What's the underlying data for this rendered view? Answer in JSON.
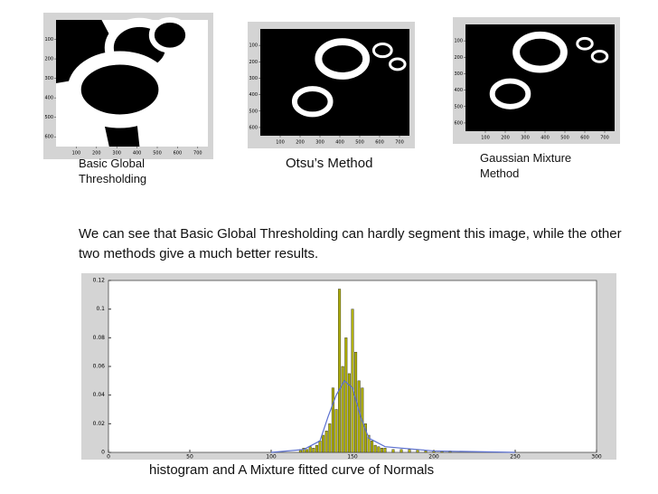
{
  "panels": [
    {
      "caption": "Basic Global Thresholding",
      "xlim": [
        0,
        750
      ],
      "ylim": [
        0,
        650
      ],
      "xticks": [
        100,
        200,
        300,
        400,
        500,
        600,
        700
      ],
      "yticks": [
        100,
        200,
        300,
        400,
        500,
        600
      ]
    },
    {
      "caption": "Otsu’s Method",
      "xlim": [
        0,
        750
      ],
      "ylim": [
        0,
        650
      ],
      "xticks": [
        100,
        200,
        300,
        400,
        500,
        600,
        700
      ],
      "yticks": [
        100,
        200,
        300,
        400,
        500,
        600
      ]
    },
    {
      "caption": "Gaussian Mixture Method",
      "xlim": [
        0,
        750
      ],
      "ylim": [
        0,
        650
      ],
      "xticks": [
        100,
        200,
        300,
        400,
        500,
        600,
        700
      ],
      "yticks": [
        100,
        200,
        300,
        400,
        500,
        600
      ]
    }
  ],
  "body": "We can see that Basic Global Thresholding can hardly segment this image, while the other two methods give a much better results.",
  "histogram": {
    "type": "bar",
    "caption": "histogram and A Mixture fitted curve of  Normals",
    "xlim": [
      0,
      300
    ],
    "ylim": [
      0,
      0.12
    ],
    "xticks": [
      0,
      50,
      100,
      150,
      200,
      250,
      300
    ],
    "yticks": [
      0,
      0.02,
      0.04,
      0.06,
      0.08,
      0.1,
      0.12
    ],
    "color": "#b0b000",
    "x": [
      118,
      120,
      122,
      124,
      126,
      128,
      130,
      132,
      134,
      136,
      138,
      140,
      142,
      144,
      146,
      148,
      150,
      152,
      154,
      156,
      158,
      160,
      162,
      164,
      166,
      168,
      170,
      175,
      180,
      185,
      190,
      195,
      200,
      205,
      210
    ],
    "values": [
      0.002,
      0.003,
      0.002,
      0.004,
      0.003,
      0.005,
      0.008,
      0.012,
      0.015,
      0.02,
      0.045,
      0.03,
      0.114,
      0.06,
      0.08,
      0.055,
      0.1,
      0.07,
      0.05,
      0.045,
      0.02,
      0.012,
      0.008,
      0.005,
      0.004,
      0.003,
      0.003,
      0.002,
      0.002,
      0.002,
      0.002,
      0.001,
      0.001,
      0.001,
      0.001
    ],
    "curve_color": "#5a6fd0",
    "curve_x": [
      100,
      120,
      130,
      135,
      140,
      145,
      150,
      155,
      160,
      170,
      200,
      250
    ],
    "curve_values": [
      0,
      0.002,
      0.008,
      0.025,
      0.04,
      0.05,
      0.045,
      0.025,
      0.01,
      0.004,
      0.001,
      0
    ]
  }
}
